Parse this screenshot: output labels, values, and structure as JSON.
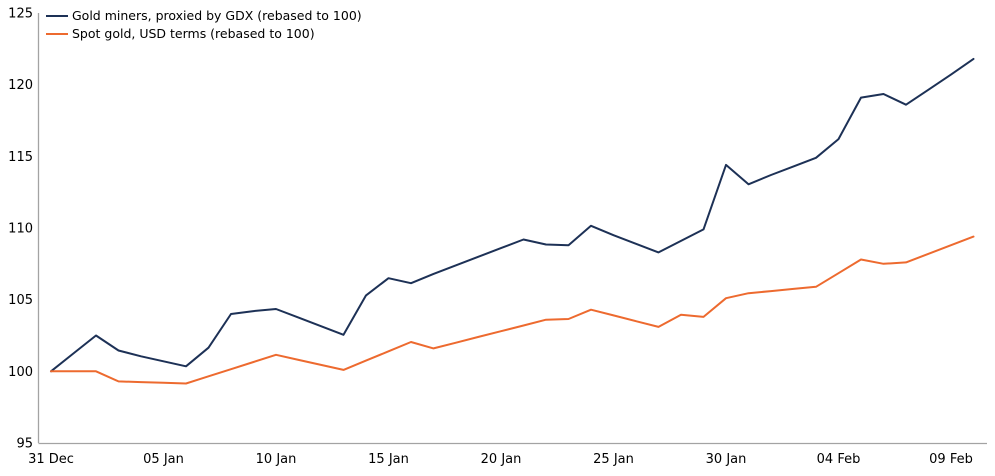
{
  "chart_data": {
    "type": "line",
    "title": "",
    "x_axis": {
      "tick_labels": [
        "31 Dec",
        "05 Jan",
        "10 Jan",
        "15 Jan",
        "20 Jan",
        "25 Jan",
        "30 Jan",
        "04 Feb",
        "09 Feb"
      ],
      "tick_indices": [
        0,
        5,
        10,
        15,
        20,
        25,
        30,
        35,
        40
      ]
    },
    "y_axis": {
      "ticks": [
        95,
        100,
        105,
        110,
        115,
        120,
        125
      ],
      "range": [
        95,
        125
      ]
    },
    "grid": false,
    "legend_position": "top-left",
    "axis_color": "#a3a3a3",
    "text_color": "#000000",
    "series": [
      {
        "name": "Gold miners, proxied by GDX (rebased to 100)",
        "color": "#1d3156",
        "values": [
          100.0,
          101.25,
          102.5,
          101.45,
          101.05,
          100.7,
          100.35,
          101.65,
          104.0,
          104.2,
          104.35,
          103.75,
          103.15,
          102.55,
          105.3,
          106.5,
          106.15,
          106.8,
          107.4,
          108.0,
          108.6,
          109.2,
          108.85,
          108.8,
          110.15,
          109.5,
          108.9,
          108.3,
          109.1,
          109.9,
          114.4,
          113.05,
          113.7,
          114.3,
          114.9,
          116.2,
          119.1,
          119.35,
          118.6,
          119.65,
          120.7,
          121.8
        ]
      },
      {
        "name": "Spot gold, USD terms (rebased to 100)",
        "color": "#ed6a2f",
        "values": [
          100.0,
          100.0,
          100.0,
          99.3,
          99.25,
          99.2,
          99.15,
          99.65,
          100.15,
          100.65,
          101.15,
          100.8,
          100.45,
          100.1,
          100.75,
          101.4,
          102.05,
          101.6,
          102.0,
          102.4,
          102.8,
          103.2,
          103.6,
          103.65,
          104.3,
          103.9,
          103.5,
          103.1,
          103.95,
          103.8,
          105.1,
          105.45,
          105.6,
          105.75,
          105.9,
          106.85,
          107.8,
          107.5,
          107.6,
          108.2,
          108.8,
          109.4
        ]
      }
    ]
  }
}
